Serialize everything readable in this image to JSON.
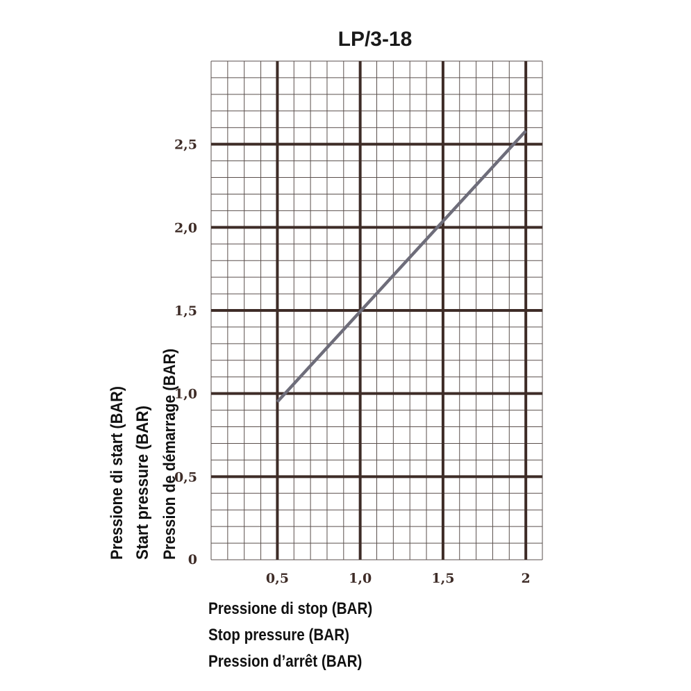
{
  "chart_data": {
    "type": "line",
    "title": "LP/3-18",
    "xlabel": [
      "Pressione di stop (BAR)",
      "Stop pressure (BAR)",
      "Pression d’arrêt (BAR)"
    ],
    "ylabel": [
      "Pressione di start (BAR)",
      "Start pressure (BAR)",
      "Pression de démarrage (BAR)"
    ],
    "xlim": [
      0.1,
      2.1
    ],
    "ylim": [
      0,
      3.0
    ],
    "x_ticks": [
      {
        "value": 0.5,
        "label": "0,5"
      },
      {
        "value": 1.0,
        "label": "1,0"
      },
      {
        "value": 1.5,
        "label": "1,5"
      },
      {
        "value": 2.0,
        "label": "2"
      }
    ],
    "y_ticks": [
      {
        "value": 0,
        "label": "0"
      },
      {
        "value": 0.5,
        "label": "0,5"
      },
      {
        "value": 1.0,
        "label": "1,0"
      },
      {
        "value": 1.5,
        "label": "1,5"
      },
      {
        "value": 2.0,
        "label": "2,0"
      },
      {
        "value": 2.5,
        "label": "2,5"
      }
    ],
    "grid": true,
    "series": [
      {
        "x": [
          0.5,
          2.0
        ],
        "y": [
          0.95,
          2.58
        ],
        "color": "#6e6d7a"
      }
    ],
    "colors": {
      "major_grid": "#3e2c27",
      "minor_grid": "#5a4f4c",
      "line": "#6e6d7a"
    }
  }
}
